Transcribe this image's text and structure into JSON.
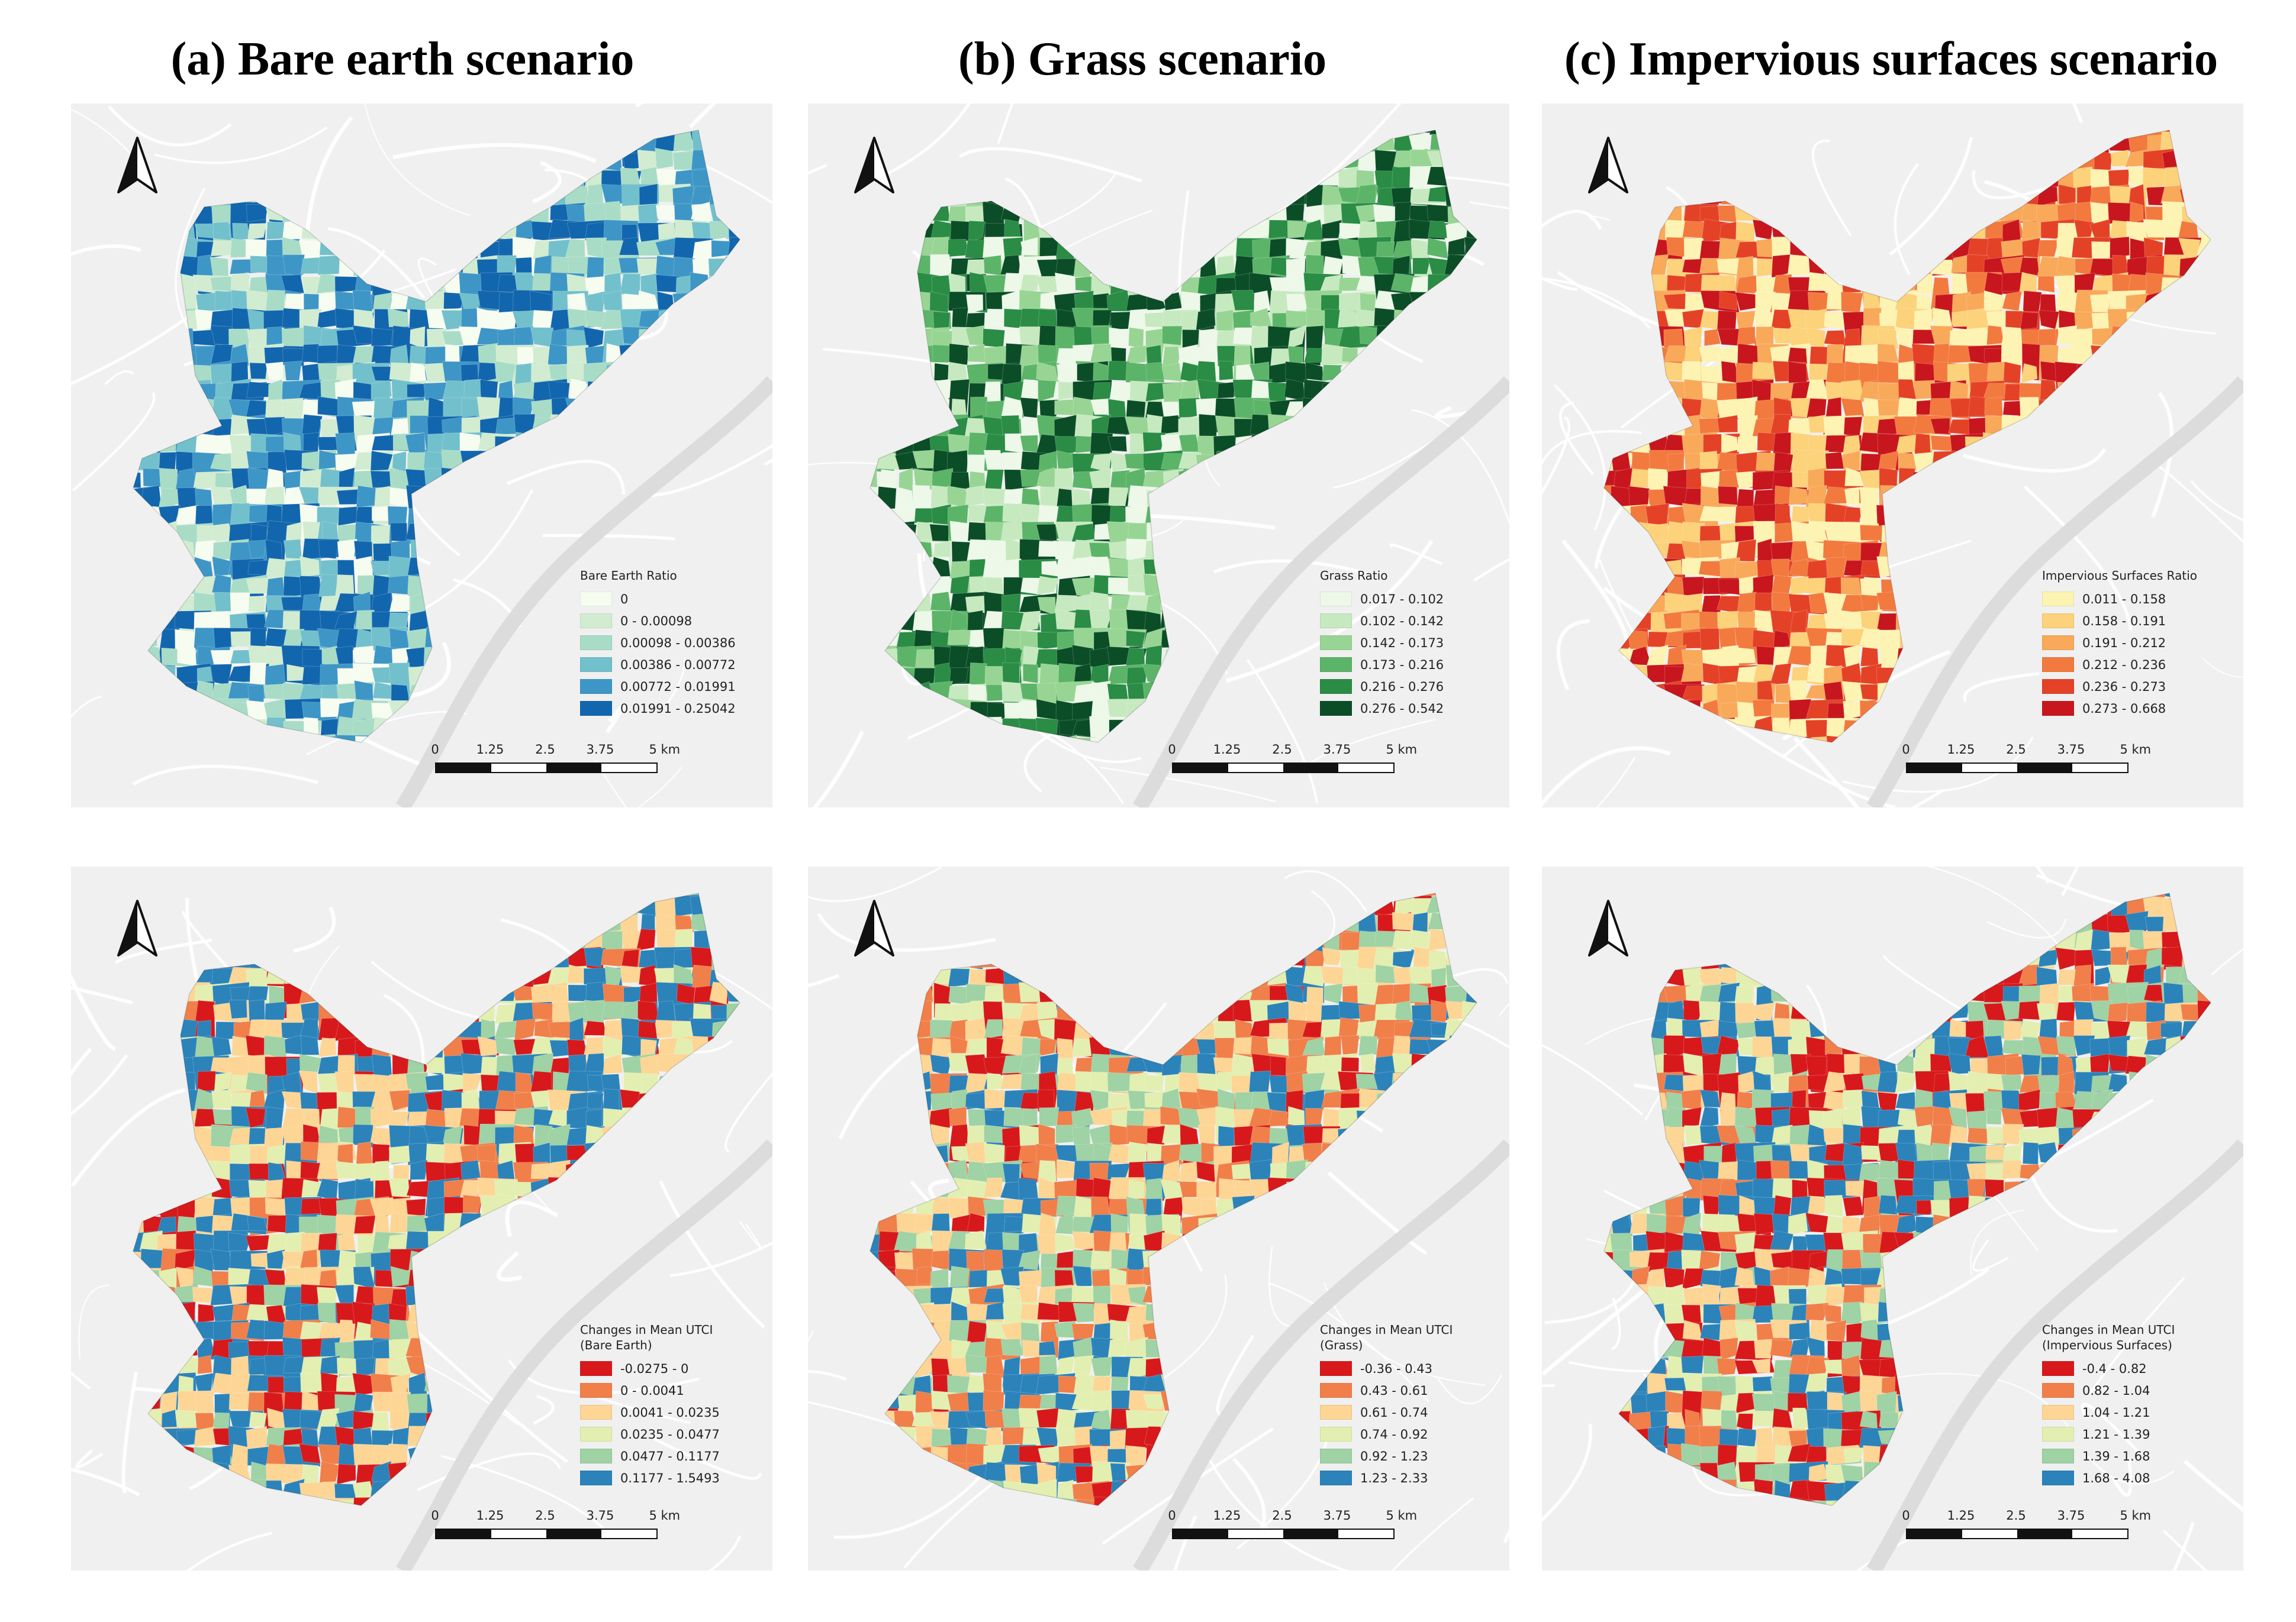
{
  "columns": [
    {
      "title": "(a) Bare earth scenario"
    },
    {
      "title": "(b) Grass scenario"
    },
    {
      "title": "(c) Impervious surfaces scenario"
    }
  ],
  "scalebar": {
    "labels": [
      "0",
      "1.25",
      "2.5",
      "3.75",
      "5 km"
    ]
  },
  "panels": [
    {
      "legend_title": "Bare Earth Ratio",
      "classes": [
        {
          "label": "0",
          "color": "#f7fcf0"
        },
        {
          "label": "0 - 0.00098",
          "color": "#d1ecd0"
        },
        {
          "label": "0.00098 - 0.00386",
          "color": "#a8dcc6"
        },
        {
          "label": "0.00386 - 0.00772",
          "color": "#72c0cc"
        },
        {
          "label": "0.00772 - 0.01991",
          "color": "#3e96c6"
        },
        {
          "label": "0.01991 - 0.25042",
          "color": "#1266ad"
        }
      ],
      "weights": [
        1,
        1.4,
        1.6,
        1.6,
        2,
        3.5
      ]
    },
    {
      "legend_title": "Grass Ratio",
      "classes": [
        {
          "label": "0.017 - 0.102",
          "color": "#edf8e9"
        },
        {
          "label": "0.102 - 0.142",
          "color": "#c7e9c0"
        },
        {
          "label": "0.142 - 0.173",
          "color": "#98d594"
        },
        {
          "label": "0.173 - 0.216",
          "color": "#5cb468"
        },
        {
          "label": "0.216 - 0.276",
          "color": "#2a8c45"
        },
        {
          "label": "0.276 - 0.542",
          "color": "#0b4d27"
        }
      ],
      "weights": [
        2,
        1.6,
        1.6,
        1.6,
        1.8,
        2.4
      ]
    },
    {
      "legend_title": "Impervious Surfaces Ratio",
      "classes": [
        {
          "label": "0.011 - 0.158",
          "color": "#fdf3b2"
        },
        {
          "label": "0.158 - 0.191",
          "color": "#fcd27a"
        },
        {
          "label": "0.191 - 0.212",
          "color": "#f9a95a"
        },
        {
          "label": "0.212 - 0.236",
          "color": "#f27a3e"
        },
        {
          "label": "0.236 - 0.273",
          "color": "#e44227"
        },
        {
          "label": "0.273 - 0.668",
          "color": "#c8161e"
        }
      ],
      "weights": [
        2.4,
        1.6,
        1.6,
        1.6,
        1.8,
        2.6
      ]
    },
    {
      "legend_title": "Changes in Mean UTCI\n(Bare Earth)",
      "classes": [
        {
          "label": "-0.0275 - 0",
          "color": "#d7191c"
        },
        {
          "label": "0 - 0.0041",
          "color": "#f07f4a"
        },
        {
          "label": "0.0041 - 0.0235",
          "color": "#fdd595"
        },
        {
          "label": "0.0235 - 0.0477",
          "color": "#e2efb0"
        },
        {
          "label": "0.0477 - 0.1177",
          "color": "#9fd2a4"
        },
        {
          "label": "0.1177 - 1.5493",
          "color": "#2b83ba"
        }
      ],
      "weights": [
        1.6,
        0.8,
        2,
        1.6,
        1.3,
        3
      ]
    },
    {
      "legend_title": "Changes in Mean UTCI\n(Grass)",
      "classes": [
        {
          "label": "-0.36 - 0.43",
          "color": "#d7191c"
        },
        {
          "label": "0.43 - 0.61",
          "color": "#f07f4a"
        },
        {
          "label": "0.61 - 0.74",
          "color": "#fdd595"
        },
        {
          "label": "0.74 - 0.92",
          "color": "#e2efb0"
        },
        {
          "label": "0.92 - 1.23",
          "color": "#9fd2a4"
        },
        {
          "label": "1.23 - 2.33",
          "color": "#2b83ba"
        }
      ],
      "weights": [
        1.3,
        1.6,
        1.8,
        1.8,
        1.8,
        1.8
      ]
    },
    {
      "legend_title": "Changes in Mean UTCI\n(Impervious Surfaces)",
      "classes": [
        {
          "label": "-0.4 - 0.82",
          "color": "#d7191c"
        },
        {
          "label": "0.82 - 1.04",
          "color": "#f07f4a"
        },
        {
          "label": "1.04 - 1.21",
          "color": "#fdd595"
        },
        {
          "label": "1.21 - 1.39",
          "color": "#e2efb0"
        },
        {
          "label": "1.39 - 1.68",
          "color": "#9fd2a4"
        },
        {
          "label": "1.68 - 4.08",
          "color": "#2b83ba"
        }
      ],
      "weights": [
        2,
        1.4,
        1.6,
        1.6,
        1.6,
        2.6
      ]
    }
  ]
}
